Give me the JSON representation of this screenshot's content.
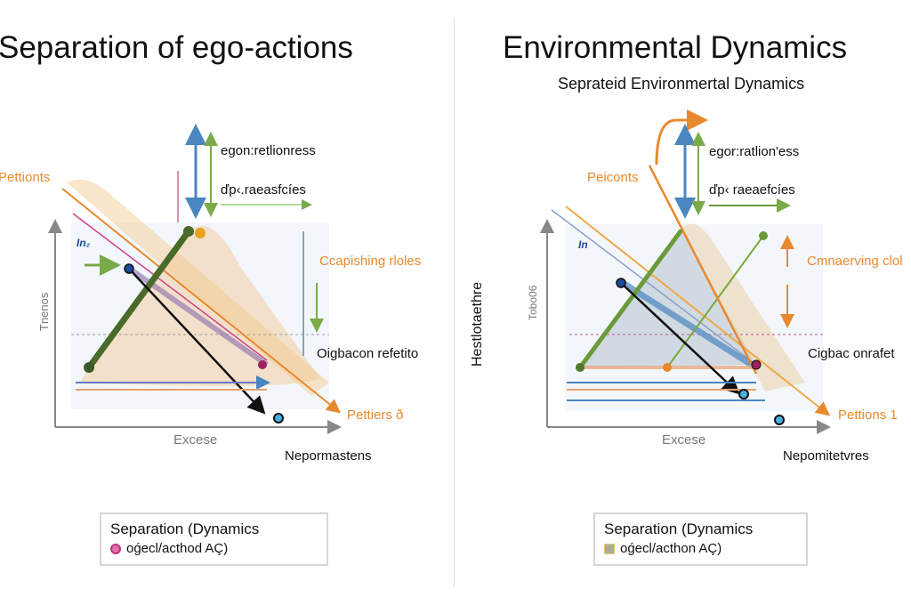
{
  "left": {
    "title": "Separation of ego-actions",
    "y_label": "Tnenos",
    "x_label": "Excese",
    "corner_mark": "In₂",
    "labels": {
      "top1": "egon:retlionress",
      "top2": "ďp‹.raeasfcíes",
      "left_orange": "Pettionts",
      "right_orange": "Ccapishing rloles",
      "right_black": "Oigbacon refetito",
      "bottom_orange": "Pettiers ð",
      "bottom_black": "Nepormastens"
    },
    "legend": {
      "title": "Separation (Dynamics",
      "item": "oǵecl/acthod AÇ)",
      "marker_color": "#c0307a"
    }
  },
  "right": {
    "title": "Environmental Dynamics",
    "subtitle": "Sepratеid Environmertal Dynamics",
    "y_label": "Hestlotaethre",
    "y_tick": "Tobo06",
    "x_label": "Excese",
    "corner_mark": "In",
    "labels": {
      "top1": "egor:ratlion'ess",
      "top2": "ďp‹ raeaefcíes",
      "left_orange": "Peiconts",
      "right_orange": "Cmnaerving clol",
      "right_black": "Cigbac onrafet",
      "bottom_orange": "Pettions 1",
      "bottom_black": "Nepomitetvres"
    },
    "legend": {
      "title": "Separation (Dynamics",
      "item": "oǵecl/acthon AÇ)",
      "marker_color": "#a8b090"
    }
  },
  "colors": {
    "orange": "#e8892e",
    "green": "#6a9a3a",
    "blue": "#4a86c0",
    "pink": "#d0408a",
    "black": "#111111"
  }
}
